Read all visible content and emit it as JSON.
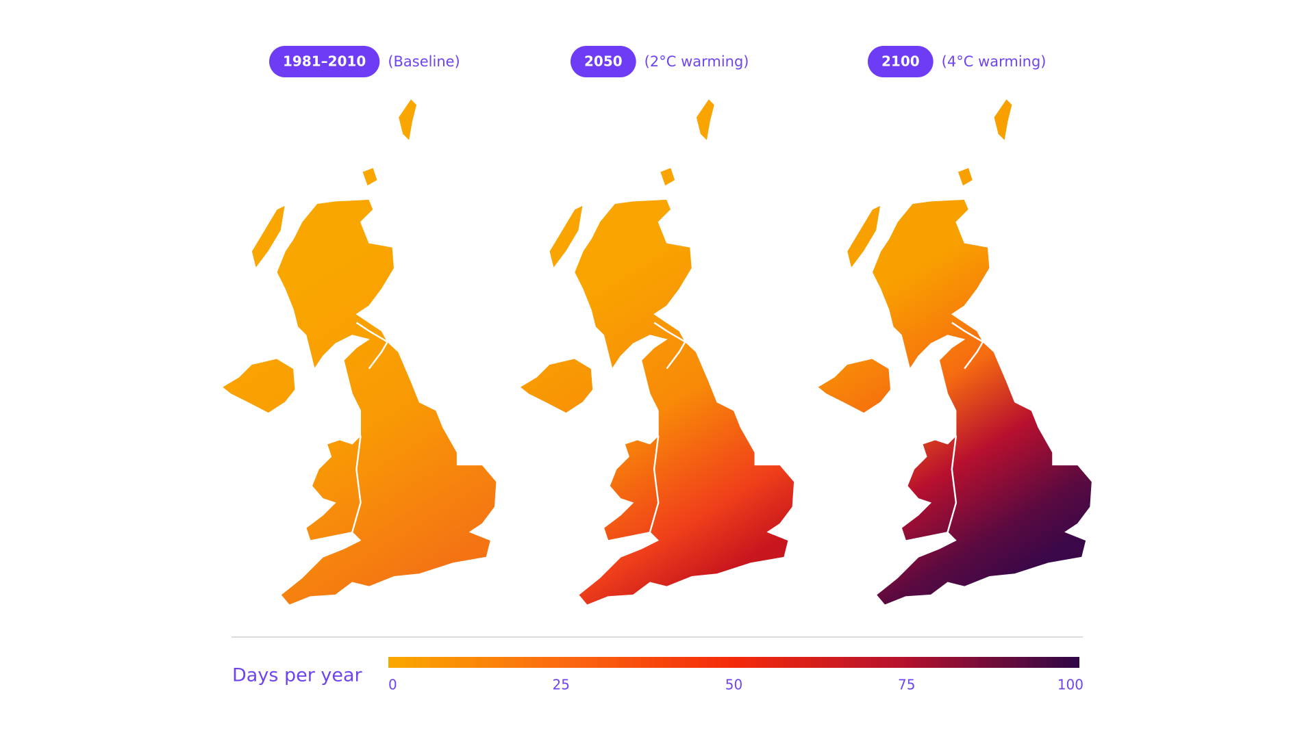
{
  "panels": [
    {
      "period": "1981–2010",
      "scenario": "(Baseline)"
    },
    {
      "period": "2050",
      "scenario": "(2°C warming)"
    },
    {
      "period": "2100",
      "scenario": "(4°C warming)"
    }
  ],
  "legend": {
    "title": "Days per year",
    "range": [
      0,
      100
    ],
    "ticks": [
      0,
      25,
      50,
      75,
      100
    ],
    "colors": [
      "#f9a800",
      "#fb6a10",
      "#f42a0a",
      "#b3112e",
      "#2e0846"
    ]
  }
}
